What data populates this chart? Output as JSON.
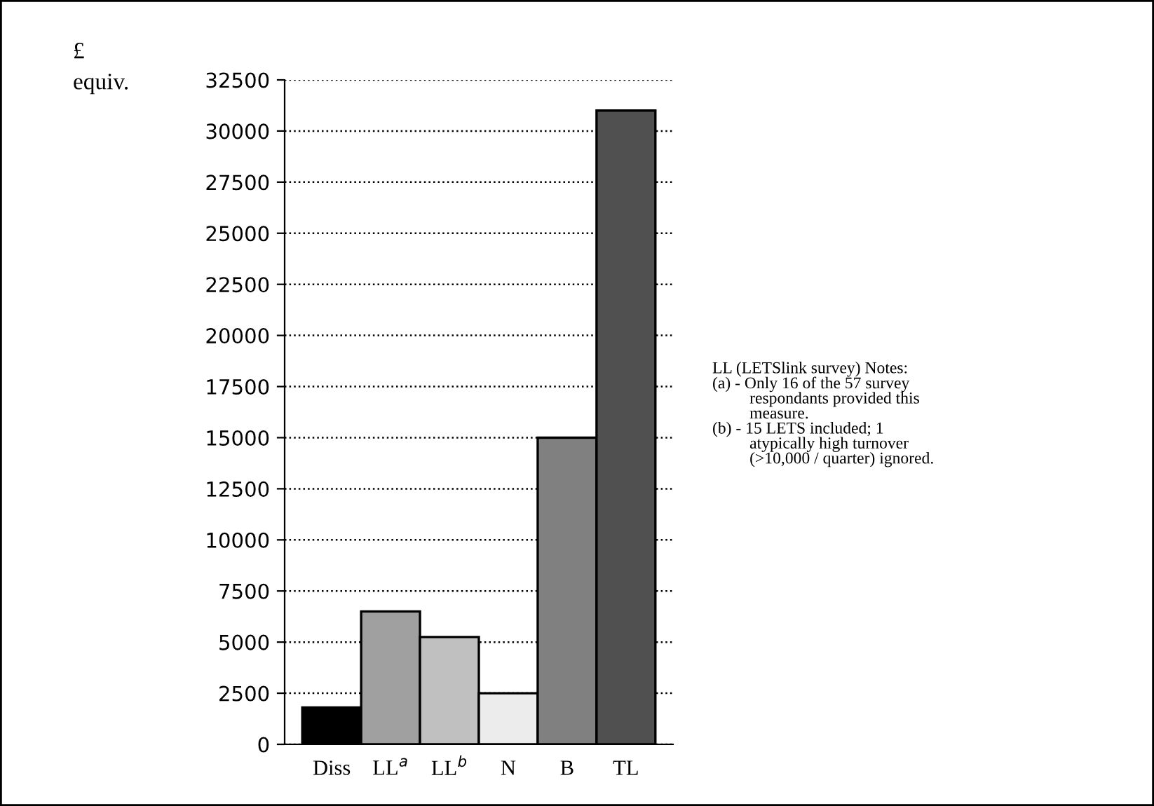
{
  "chart_data": {
    "type": "bar",
    "ylabel": "£\nequiv.",
    "categories": [
      "Diss",
      "LL$^{a}$",
      "LL$^{b}$",
      "N",
      "B",
      "TL"
    ],
    "values": [
      1800,
      6500,
      5250,
      2500,
      15000,
      31000
    ],
    "colors": [
      "#000000",
      "#a0a0a0",
      "#c0c0c0",
      "#ececec",
      "#808080",
      "#505050"
    ],
    "ylim": [
      0,
      32500
    ],
    "yticks": [
      0,
      2500,
      5000,
      7500,
      10000,
      12500,
      15000,
      17500,
      20000,
      22500,
      25000,
      27500,
      30000,
      32500
    ],
    "grid": "y",
    "line_style": "dotted",
    "annotations": [
      "LL (LETSlink survey) Notes:\n(a) - Only 16 of the 57 survey\n         respondants provided this\n         measure.\n(b) - 15 LETS included; 1\n         atypically high turnover\n         (>10,000 / quarter) ignored."
    ]
  }
}
